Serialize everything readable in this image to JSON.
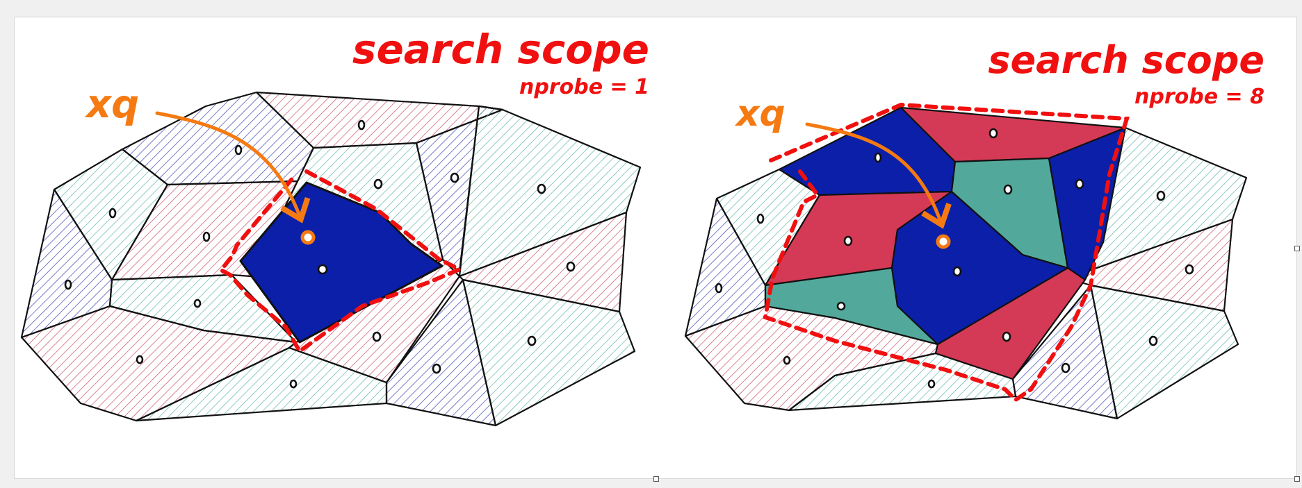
{
  "colors": {
    "query": "#f57a12",
    "scope": "#f01010",
    "blue": "#0b1fa8",
    "red": "#d43a55",
    "teal": "#52a99b",
    "hatch_blue": "#3a45b0",
    "hatch_red": "#c9506b",
    "hatch_teal": "#5fb5a8",
    "edge": "#111111"
  },
  "panels": [
    {
      "id": "left",
      "title": "search scope",
      "param": "nprobe = 1",
      "query_label": "xq",
      "nprobe": 1
    },
    {
      "id": "right",
      "title": "search scope",
      "param": "nprobe = 8",
      "query_label": "xq",
      "nprobe": 8
    }
  ]
}
